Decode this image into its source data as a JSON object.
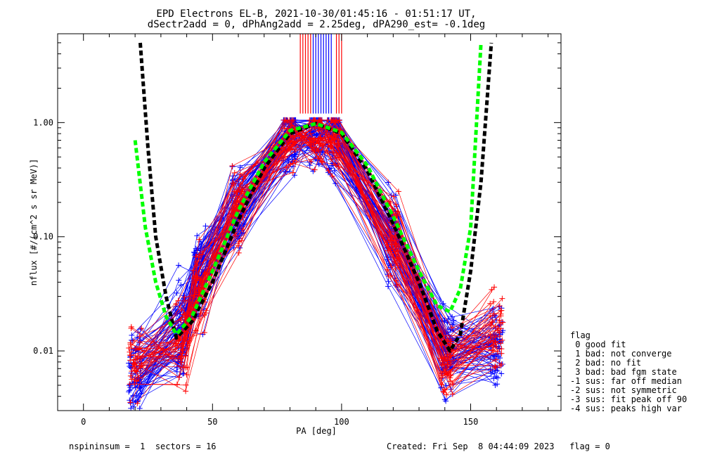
{
  "title_line1": "EPD Electrons EL-B, 2021-10-30/01:45:16 - 01:51:17 UT,",
  "title_line2": "dSectr2add = 0, dPhAng2add = 2.25deg, dPA290_est=  -0.1deg",
  "footer": {
    "left": "nspininsum =  1  sectors = 16",
    "right": "Created: Fri Sep  8 04:44:09 2023   flag = 0"
  },
  "legend": {
    "title": "flag",
    "items": [
      " 0 good fit",
      " 1 bad: not converge",
      " 2 bad: no fit",
      " 3 bad: bad fgm state",
      "-1 sus: far off median",
      "-2 sus: not symmetric",
      "-3 sus: fit peak off 90",
      "-4 sus: peaks high var"
    ]
  },
  "colors": {
    "red": "#ff0000",
    "blue": "#0000ff",
    "black_fit": "#000000",
    "green_fit": "#00ff00"
  },
  "chart_data": {
    "type": "line",
    "xlabel": "PA [deg]",
    "ylabel": "nflux [#/(cm^2 s sr MeV)]",
    "xlim": [
      -10,
      185
    ],
    "ylim": [
      0.003,
      6.0
    ],
    "yscale": "log",
    "xticks": [
      0,
      50,
      100,
      150
    ],
    "xtick_labels": [
      "0",
      "50",
      "100",
      "150"
    ],
    "yticks": [
      0.01,
      0.1,
      1.0
    ],
    "ytick_labels": [
      "0.01",
      "0.10",
      "1.00"
    ],
    "grid": false,
    "series": [
      {
        "color": "blue",
        "style": "thin lines with + markers",
        "pa": [
          20,
          38,
          45,
          60,
          80,
          90,
          97,
          120,
          141,
          160
        ],
        "flux_median": [
          0.006,
          0.012,
          0.05,
          0.18,
          0.8,
          0.85,
          0.82,
          0.1,
          0.009,
          0.012
        ]
      },
      {
        "color": "red",
        "style": "thin lines with + markers",
        "pa": [
          20,
          38,
          45,
          60,
          80,
          90,
          97,
          120,
          141,
          160
        ],
        "flux_median": [
          0.008,
          0.01,
          0.04,
          0.2,
          0.85,
          0.9,
          0.85,
          0.09,
          0.007,
          0.015
        ]
      },
      {
        "color": "black_fit",
        "style": "thick dashed",
        "pa": [
          22,
          25,
          28,
          32,
          36,
          42,
          50,
          60,
          70,
          80,
          90,
          100,
          110,
          120,
          130,
          137,
          142,
          146,
          150,
          154,
          158
        ],
        "flux": [
          5.0,
          0.6,
          0.1,
          0.03,
          0.013,
          0.018,
          0.04,
          0.14,
          0.4,
          0.8,
          0.98,
          0.8,
          0.38,
          0.13,
          0.04,
          0.015,
          0.01,
          0.014,
          0.05,
          0.3,
          5.0
        ]
      },
      {
        "color": "green_fit",
        "style": "thick dashed",
        "pa": [
          20,
          24,
          28,
          32,
          36,
          42,
          50,
          60,
          70,
          80,
          90,
          100,
          110,
          120,
          130,
          137,
          142,
          146,
          150,
          154
        ],
        "flux": [
          0.7,
          0.12,
          0.04,
          0.02,
          0.014,
          0.02,
          0.05,
          0.17,
          0.45,
          0.85,
          0.98,
          0.82,
          0.42,
          0.15,
          0.05,
          0.025,
          0.022,
          0.035,
          0.12,
          5.0
        ]
      },
      {
        "color": "blue",
        "style": "vertical lines above plot",
        "pa": [
          89,
          90,
          91,
          92,
          93,
          94,
          95,
          96
        ],
        "flux_range": [
          1.2,
          6.0
        ]
      },
      {
        "color": "red",
        "style": "vertical lines above plot",
        "pa": [
          84,
          85,
          86,
          87,
          88,
          98,
          99,
          100
        ],
        "flux_range": [
          1.2,
          6.0
        ]
      }
    ]
  }
}
